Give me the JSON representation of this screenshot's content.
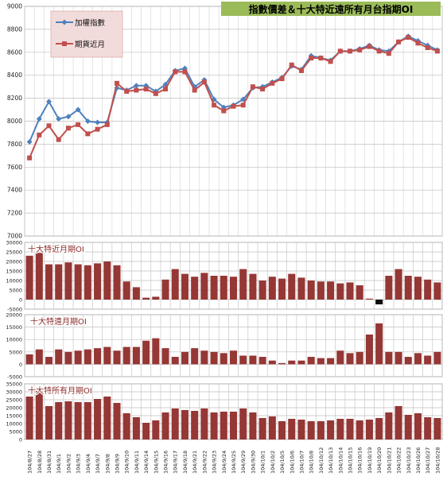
{
  "chart_data": [
    {
      "type": "line",
      "title": "指數價差＆十大特近遠所有月台指期OI",
      "ylim": [
        7000,
        9000
      ],
      "yticks": [
        7000,
        7200,
        7400,
        7600,
        7800,
        8000,
        8200,
        8400,
        8600,
        8800,
        9000
      ],
      "grid": true,
      "legend_position": "top-left",
      "categories": [
        "104/8/27",
        "104/8/28",
        "104/8/31",
        "104/9/1",
        "104/9/2",
        "104/9/3",
        "104/9/4",
        "104/9/7",
        "104/9/8",
        "104/9/9",
        "104/9/10",
        "104/9/11",
        "104/9/14",
        "104/9/15",
        "104/9/16",
        "104/9/17",
        "104/9/18",
        "104/9/21",
        "104/9/22",
        "104/9/23",
        "104/9/24",
        "104/9/25",
        "104/9/29",
        "104/9/30",
        "104/10/1",
        "104/10/2",
        "104/10/5",
        "104/10/6",
        "104/10/7",
        "104/10/8",
        "104/10/12",
        "104/10/13",
        "104/10/14",
        "104/10/15",
        "104/10/16",
        "104/10/19",
        "104/10/20",
        "104/10/21",
        "104/10/22",
        "104/10/23",
        "104/10/26",
        "104/10/27",
        "104/10/28"
      ],
      "series": [
        {
          "name": "加權指數",
          "color": "#4f81bd",
          "marker": "diamond",
          "values": [
            7820,
            8020,
            8170,
            8020,
            8040,
            8100,
            8000,
            7990,
            7990,
            8290,
            8270,
            8310,
            8310,
            8260,
            8320,
            8440,
            8460,
            8300,
            8360,
            8190,
            8120,
            8140,
            8190,
            8290,
            8300,
            8340,
            8380,
            8480,
            8450,
            8570,
            8550,
            8530,
            8610,
            8610,
            8630,
            8660,
            8620,
            8610,
            8690,
            8740,
            8700,
            8660,
            8620
          ]
        },
        {
          "name": "期貨近月",
          "color": "#c0504d",
          "marker": "square",
          "values": [
            7680,
            7880,
            7960,
            7840,
            7940,
            7970,
            7890,
            7930,
            7970,
            8330,
            8260,
            8270,
            8280,
            8240,
            8280,
            8430,
            8430,
            8270,
            8340,
            8140,
            8090,
            8130,
            8140,
            8300,
            8280,
            8330,
            8370,
            8490,
            8440,
            8550,
            8550,
            8520,
            8610,
            8610,
            8620,
            8650,
            8610,
            8590,
            8690,
            8730,
            8680,
            8640,
            8610
          ]
        }
      ]
    },
    {
      "type": "bar",
      "title": "十大特近月期OI",
      "ylim": [
        -5000,
        30000
      ],
      "yticks": [
        -5000,
        0,
        5000,
        10000,
        15000,
        20000,
        25000,
        30000
      ],
      "grid": true,
      "colors": {
        "positive": "#953735",
        "negative": "#0d0d0d"
      },
      "categories_ref": "shared",
      "values": [
        23000,
        24500,
        18500,
        18500,
        19500,
        18500,
        18000,
        19000,
        20000,
        18000,
        9500,
        6500,
        1000,
        1500,
        10500,
        16000,
        13500,
        12000,
        14000,
        12500,
        12500,
        12000,
        16000,
        13500,
        10000,
        12000,
        11000,
        13500,
        11500,
        10000,
        9500,
        9500,
        8500,
        9000,
        7500,
        500,
        -2500,
        12500,
        16000,
        12500,
        12000,
        10500,
        9000
      ]
    },
    {
      "type": "bar",
      "title": "十大特遠月期OI",
      "ylim": [
        -5000,
        20000
      ],
      "yticks": [
        -5000,
        0,
        5000,
        10000,
        15000,
        20000
      ],
      "grid": true,
      "colors": {
        "positive": "#953735",
        "negative": "#0d0d0d"
      },
      "categories_ref": "shared",
      "values": [
        4000,
        6000,
        3000,
        6000,
        5000,
        5500,
        6000,
        6500,
        7000,
        5500,
        7000,
        7000,
        9500,
        10500,
        6500,
        3000,
        5000,
        6500,
        5500,
        5000,
        4500,
        5500,
        3500,
        3500,
        3000,
        1500,
        500,
        1500,
        1500,
        3000,
        2500,
        2500,
        5500,
        4500,
        5000,
        12000,
        16500,
        5000,
        5000,
        3000,
        4500,
        3500,
        5000
      ]
    },
    {
      "type": "bar",
      "title": "十大特所有月期OI",
      "ylim": [
        0,
        35000
      ],
      "yticks": [
        0,
        5000,
        10000,
        15000,
        20000,
        25000,
        30000,
        35000
      ],
      "grid": true,
      "colors": {
        "positive": "#953735",
        "negative": "#0d0d0d"
      },
      "categories_ref": "shared",
      "values": [
        27000,
        30500,
        21000,
        23500,
        24000,
        23500,
        23500,
        25500,
        27000,
        23000,
        16500,
        14000,
        10500,
        12000,
        17000,
        19500,
        18500,
        18000,
        19500,
        17000,
        17500,
        17500,
        19500,
        17000,
        13500,
        14500,
        11500,
        13000,
        12500,
        11500,
        11500,
        12000,
        13000,
        13000,
        12000,
        12500,
        13500,
        17000,
        21000,
        15500,
        16500,
        14000,
        13500
      ]
    }
  ]
}
